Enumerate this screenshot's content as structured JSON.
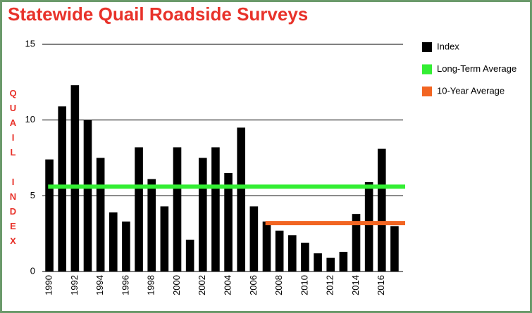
{
  "chart_data": {
    "type": "bar",
    "title": "Statewide Quail Roadside Surveys",
    "y_label": "QUAIL INDEX",
    "categories": [
      "1990",
      null,
      "1992",
      null,
      "1994",
      null,
      "1996",
      null,
      "1998",
      null,
      "2000",
      null,
      "2002",
      null,
      "2004",
      null,
      "2006",
      null,
      "2008",
      null,
      "2010",
      null,
      "2012",
      null,
      "2014",
      null,
      "2016",
      null
    ],
    "series": [
      {
        "name": "Index",
        "type": "bar",
        "color": "#000000",
        "values": [
          7.4,
          10.9,
          12.3,
          10.0,
          7.5,
          3.9,
          3.3,
          8.2,
          6.1,
          4.3,
          8.2,
          2.1,
          7.5,
          8.2,
          6.5,
          9.5,
          4.3,
          3.3,
          2.7,
          2.4,
          1.9,
          1.2,
          0.9,
          1.3,
          3.8,
          5.9,
          8.1,
          3.0
        ]
      },
      {
        "name": "Long-Term Average",
        "type": "line",
        "color": "#33ee33",
        "values": [
          5.6,
          5.6,
          5.6,
          5.6,
          5.6,
          5.6,
          5.6,
          5.6,
          5.6,
          5.6,
          5.6,
          5.6,
          5.6,
          5.6,
          5.6,
          5.6,
          5.6,
          5.6,
          5.6,
          5.6,
          5.6,
          5.6,
          5.6,
          5.6,
          5.6,
          5.6,
          5.6,
          5.6
        ]
      },
      {
        "name": "10-Year Average",
        "type": "line",
        "color": "#f26522",
        "values": [
          null,
          null,
          null,
          null,
          null,
          null,
          null,
          null,
          null,
          null,
          null,
          null,
          null,
          null,
          null,
          null,
          null,
          3.2,
          3.2,
          3.2,
          3.2,
          3.2,
          3.2,
          3.2,
          3.2,
          3.2,
          3.2,
          3.2
        ]
      }
    ],
    "ylim": [
      0,
      15
    ],
    "yticks": [
      0,
      5,
      10,
      15
    ],
    "grid": true,
    "legend": "right"
  }
}
